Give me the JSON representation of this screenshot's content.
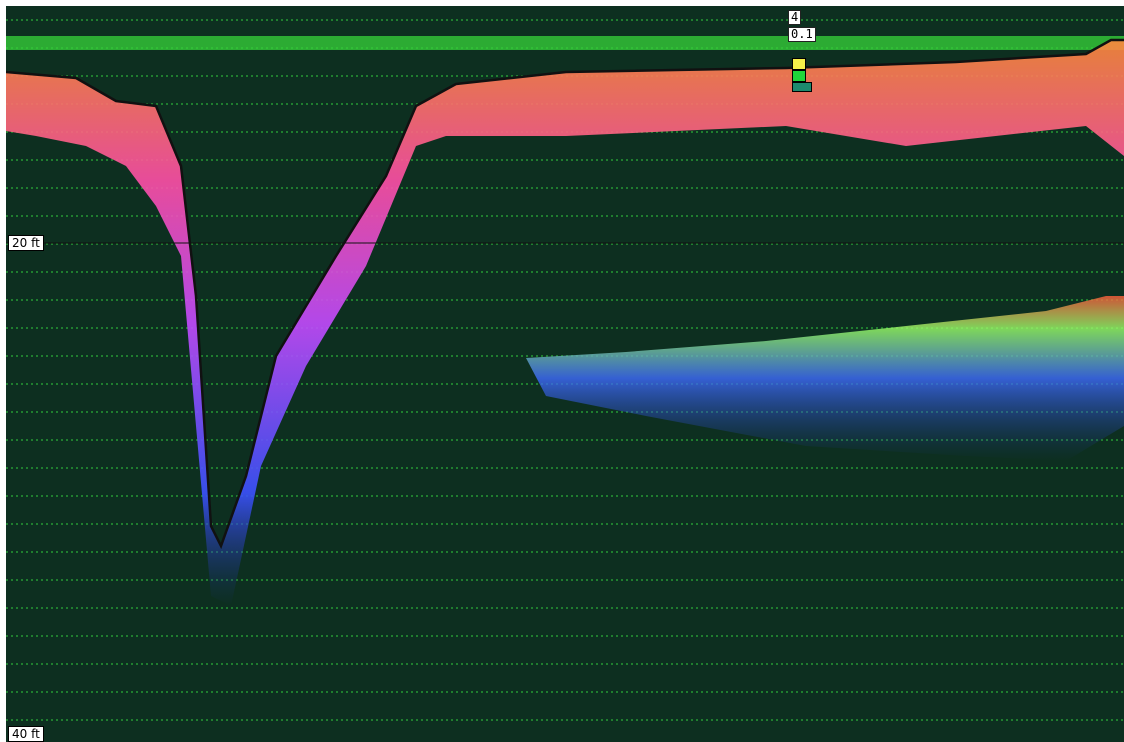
{
  "depth_scale": {
    "mid_label": "20 ft",
    "bottom_label": "40 ft"
  },
  "readout": {
    "top": "4",
    "bottom": "0.1"
  },
  "colors": {
    "water_background": "#0d2f20",
    "noise_green": "#2fbf3c",
    "surface_band": "#37d63a",
    "bottom_red": "#ff3c3c",
    "bottom_pink": "#ff6fd8",
    "bottom_yellow": "#ffe84a",
    "bottom_blue": "#2f4bff",
    "bottom_line": "#111111",
    "cursor_yellow": "#f5f04a",
    "cursor_green": "#1fd63a",
    "cursor_teal": "#1d8a6e"
  },
  "icons": {
    "cursor": "color-scale-cursor-icon"
  }
}
